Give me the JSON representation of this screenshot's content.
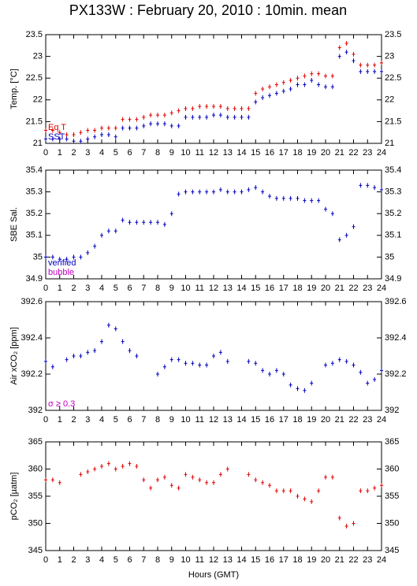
{
  "chart_data": [
    {
      "type": "scatter",
      "title": "PX133W : February 20, 2010 : 10min. mean",
      "ylabel": "Temp. [°C]",
      "x": [
        0,
        0.5,
        1,
        1.5,
        2,
        2.5,
        3,
        3.5,
        4,
        4.5,
        5,
        5.5,
        6,
        6.5,
        7,
        7.5,
        8,
        8.5,
        9,
        9.5,
        10,
        10.5,
        11,
        11.5,
        12,
        12.5,
        13,
        13.5,
        14,
        14.5,
        15,
        15.5,
        16,
        16.5,
        17,
        17.5,
        18,
        18.5,
        19,
        19.5,
        20,
        20.5,
        21,
        21.5,
        22,
        22.5,
        23,
        23.5,
        24
      ],
      "series": [
        {
          "name": "Eq T",
          "color": "#e00000",
          "values": [
            21.3,
            21.3,
            21.25,
            21.2,
            21.2,
            21.25,
            21.3,
            21.3,
            21.35,
            21.35,
            21.35,
            21.55,
            21.55,
            21.55,
            21.6,
            21.65,
            21.65,
            21.65,
            21.7,
            21.75,
            21.8,
            21.8,
            21.85,
            21.85,
            21.85,
            21.85,
            21.8,
            21.8,
            21.8,
            21.8,
            22.15,
            22.25,
            22.3,
            22.35,
            22.4,
            22.45,
            22.5,
            22.55,
            22.6,
            22.6,
            22.55,
            22.55,
            23.2,
            23.3,
            23.05,
            22.8,
            22.8,
            22.8,
            22.85
          ]
        },
        {
          "name": "SST",
          "color": "#0000c0",
          "values": [
            21.1,
            21.1,
            21.1,
            21.1,
            21.05,
            21.05,
            21.1,
            21.15,
            21.2,
            21.2,
            21.15,
            21.35,
            21.35,
            21.35,
            21.4,
            21.45,
            21.45,
            21.45,
            21.4,
            21.4,
            21.6,
            21.6,
            21.6,
            21.6,
            21.65,
            21.65,
            21.6,
            21.6,
            21.6,
            21.6,
            21.95,
            22.05,
            22.1,
            22.15,
            22.2,
            22.25,
            22.35,
            22.35,
            22.45,
            22.35,
            22.3,
            22.3,
            23.0,
            23.1,
            22.9,
            22.65,
            22.65,
            22.65,
            22.65
          ]
        }
      ],
      "xlim": [
        0,
        24
      ],
      "xticks": [
        0,
        1,
        2,
        3,
        4,
        5,
        6,
        7,
        8,
        9,
        10,
        11,
        12,
        13,
        14,
        15,
        16,
        17,
        18,
        19,
        20,
        21,
        22,
        23,
        24
      ],
      "ylim": [
        21,
        23.5
      ],
      "yticks": [
        21,
        21.5,
        22,
        22.5,
        23,
        23.5
      ],
      "legend": "lower left"
    },
    {
      "type": "scatter",
      "ylabel": "SBE Sal.",
      "x": [
        0,
        0.5,
        1,
        1.5,
        2,
        2.5,
        3,
        3.5,
        4,
        4.5,
        5,
        5.5,
        6,
        6.5,
        7,
        7.5,
        8,
        8.5,
        9,
        9.5,
        10,
        10.5,
        11,
        11.5,
        12,
        12.5,
        13,
        13.5,
        14,
        14.5,
        15,
        15.5,
        16,
        16.5,
        17,
        17.5,
        18,
        18.5,
        19,
        19.5,
        20,
        20.5,
        21,
        21.5,
        22,
        22.5,
        23,
        23.5,
        24
      ],
      "series": [
        {
          "name": "verified",
          "color": "#0000c0",
          "values": [
            35.0,
            35.0,
            34.99,
            34.99,
            35.0,
            35.0,
            35.02,
            35.05,
            35.1,
            35.12,
            35.12,
            35.17,
            35.16,
            35.16,
            35.16,
            35.16,
            35.16,
            35.15,
            35.2,
            35.29,
            35.3,
            35.3,
            35.3,
            35.3,
            35.3,
            35.31,
            35.3,
            35.3,
            35.3,
            35.31,
            35.32,
            35.3,
            35.28,
            35.27,
            35.27,
            35.27,
            35.27,
            35.26,
            35.26,
            35.26,
            35.22,
            35.2,
            35.08,
            35.1,
            35.14,
            35.33,
            35.33,
            35.32,
            35.31
          ]
        }
      ],
      "annotations": [
        {
          "text": "bubble",
          "color": "#c000c0"
        }
      ],
      "xlim": [
        0,
        24
      ],
      "xticks": [
        0,
        1,
        2,
        3,
        4,
        5,
        6,
        7,
        8,
        9,
        10,
        11,
        12,
        13,
        14,
        15,
        16,
        17,
        18,
        19,
        20,
        21,
        22,
        23,
        24
      ],
      "ylim": [
        34.9,
        35.4
      ],
      "yticks": [
        34.9,
        35,
        35.1,
        35.2,
        35.3,
        35.4
      ],
      "legend": "lower left"
    },
    {
      "type": "scatter",
      "ylabel": "Air xCO₂ [ppm]",
      "x": [
        0,
        0.5,
        1,
        1.5,
        2,
        2.5,
        3,
        3.5,
        4,
        4.5,
        5,
        5.5,
        6,
        6.5,
        7,
        7.5,
        8,
        8.5,
        9,
        9.5,
        10,
        10.5,
        11,
        11.5,
        12,
        12.5,
        13,
        13.5,
        14,
        14.5,
        15,
        15.5,
        16,
        16.5,
        17,
        17.5,
        18,
        18.5,
        19,
        19.5,
        20,
        20.5,
        21,
        21.5,
        22,
        22.5,
        23,
        23.5,
        24
      ],
      "color": "#0000c0",
      "values": [
        392.27,
        392.24,
        null,
        392.28,
        392.3,
        392.3,
        392.32,
        392.33,
        392.38,
        392.47,
        392.45,
        392.38,
        392.33,
        392.3,
        null,
        null,
        392.2,
        392.24,
        392.28,
        392.28,
        392.26,
        392.26,
        392.25,
        392.25,
        392.3,
        392.32,
        392.27,
        null,
        null,
        392.27,
        392.26,
        392.22,
        392.2,
        392.22,
        392.2,
        392.14,
        392.12,
        392.11,
        392.15,
        null,
        392.25,
        392.26,
        392.28,
        392.27,
        392.25,
        392.21,
        392.15,
        392.17,
        392.22
      ],
      "annotations": [
        {
          "text": "σ ≥ 0.3",
          "color": "#c000c0"
        }
      ],
      "xlim": [
        0,
        24
      ],
      "xticks": [
        0,
        1,
        2,
        3,
        4,
        5,
        6,
        7,
        8,
        9,
        10,
        11,
        12,
        13,
        14,
        15,
        16,
        17,
        18,
        19,
        20,
        21,
        22,
        23,
        24
      ],
      "ylim": [
        392,
        392.6
      ],
      "yticks": [
        392,
        392.2,
        392.4,
        392.6
      ],
      "legend": "lower left"
    },
    {
      "type": "scatter",
      "ylabel": "pCO₂ [µatm]",
      "xlabel": "Hours (GMT)",
      "x": [
        0,
        0.5,
        1,
        1.5,
        2,
        2.5,
        3,
        3.5,
        4,
        4.5,
        5,
        5.5,
        6,
        6.5,
        7,
        7.5,
        8,
        8.5,
        9,
        9.5,
        10,
        10.5,
        11,
        11.5,
        12,
        12.5,
        13,
        13.5,
        14,
        14.5,
        15,
        15.5,
        16,
        16.5,
        17,
        17.5,
        18,
        18.5,
        19,
        19.5,
        20,
        20.5,
        21,
        21.5,
        22,
        22.5,
        23,
        23.5,
        24
      ],
      "color": "#e00000",
      "values": [
        358,
        358,
        357.5,
        null,
        null,
        359,
        359.5,
        360,
        360.5,
        361,
        360,
        360.5,
        361,
        360.5,
        358,
        356.5,
        358,
        358.5,
        357,
        356.5,
        359,
        358.5,
        358,
        357.5,
        357.5,
        359,
        360,
        null,
        null,
        359,
        358,
        357.5,
        357,
        356,
        356,
        356,
        355,
        354.5,
        354,
        356,
        358.5,
        358.5,
        351,
        349.5,
        350,
        356,
        356,
        356.5,
        357
      ],
      "xlim": [
        0,
        24
      ],
      "xticks": [
        0,
        1,
        2,
        3,
        4,
        5,
        6,
        7,
        8,
        9,
        10,
        11,
        12,
        13,
        14,
        15,
        16,
        17,
        18,
        19,
        20,
        21,
        22,
        23,
        24
      ],
      "ylim": [
        345,
        365
      ],
      "yticks": [
        345,
        350,
        355,
        360,
        365
      ]
    }
  ]
}
